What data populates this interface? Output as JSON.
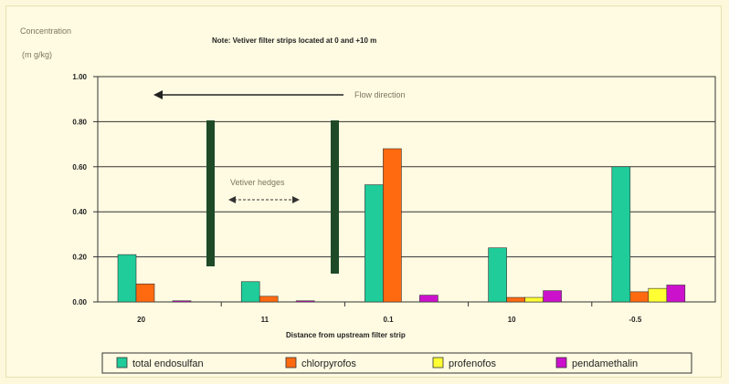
{
  "chart_data": {
    "type": "bar",
    "title": "Note: Vetiver filter strips located at 0 and +10 m",
    "ylabel_line1": "Concentration",
    "ylabel_line2": "(m g/kg)",
    "xlabel": "Distance from upstream filter strip",
    "categories": [
      "20",
      "11",
      "0.1",
      "10",
      "-0.5"
    ],
    "ylim": [
      0,
      1.0
    ],
    "yticks": [
      "0.00",
      "0.20",
      "0.40",
      "0.60",
      "0.80",
      "1.00"
    ],
    "grid": true,
    "legend_position": "bottom",
    "series": [
      {
        "name": "total endosulfan",
        "color": "#1fcc9a",
        "values": [
          0.21,
          0.09,
          0.52,
          0.24,
          0.6
        ]
      },
      {
        "name": "chlorpyrofos",
        "color": "#ff6a10",
        "values": [
          0.08,
          0.025,
          0.68,
          0.02,
          0.045
        ]
      },
      {
        "name": "profenofos",
        "color": "#ffff33",
        "values": [
          0.0,
          0.0,
          0.0,
          0.02,
          0.06
        ]
      },
      {
        "name": "pendamethalin",
        "color": "#cc11cc",
        "values": [
          0.005,
          0.005,
          0.03,
          0.05,
          0.075
        ]
      }
    ],
    "annotations": {
      "flow": "Flow direction",
      "hedges": "Vetiver hedges"
    }
  }
}
